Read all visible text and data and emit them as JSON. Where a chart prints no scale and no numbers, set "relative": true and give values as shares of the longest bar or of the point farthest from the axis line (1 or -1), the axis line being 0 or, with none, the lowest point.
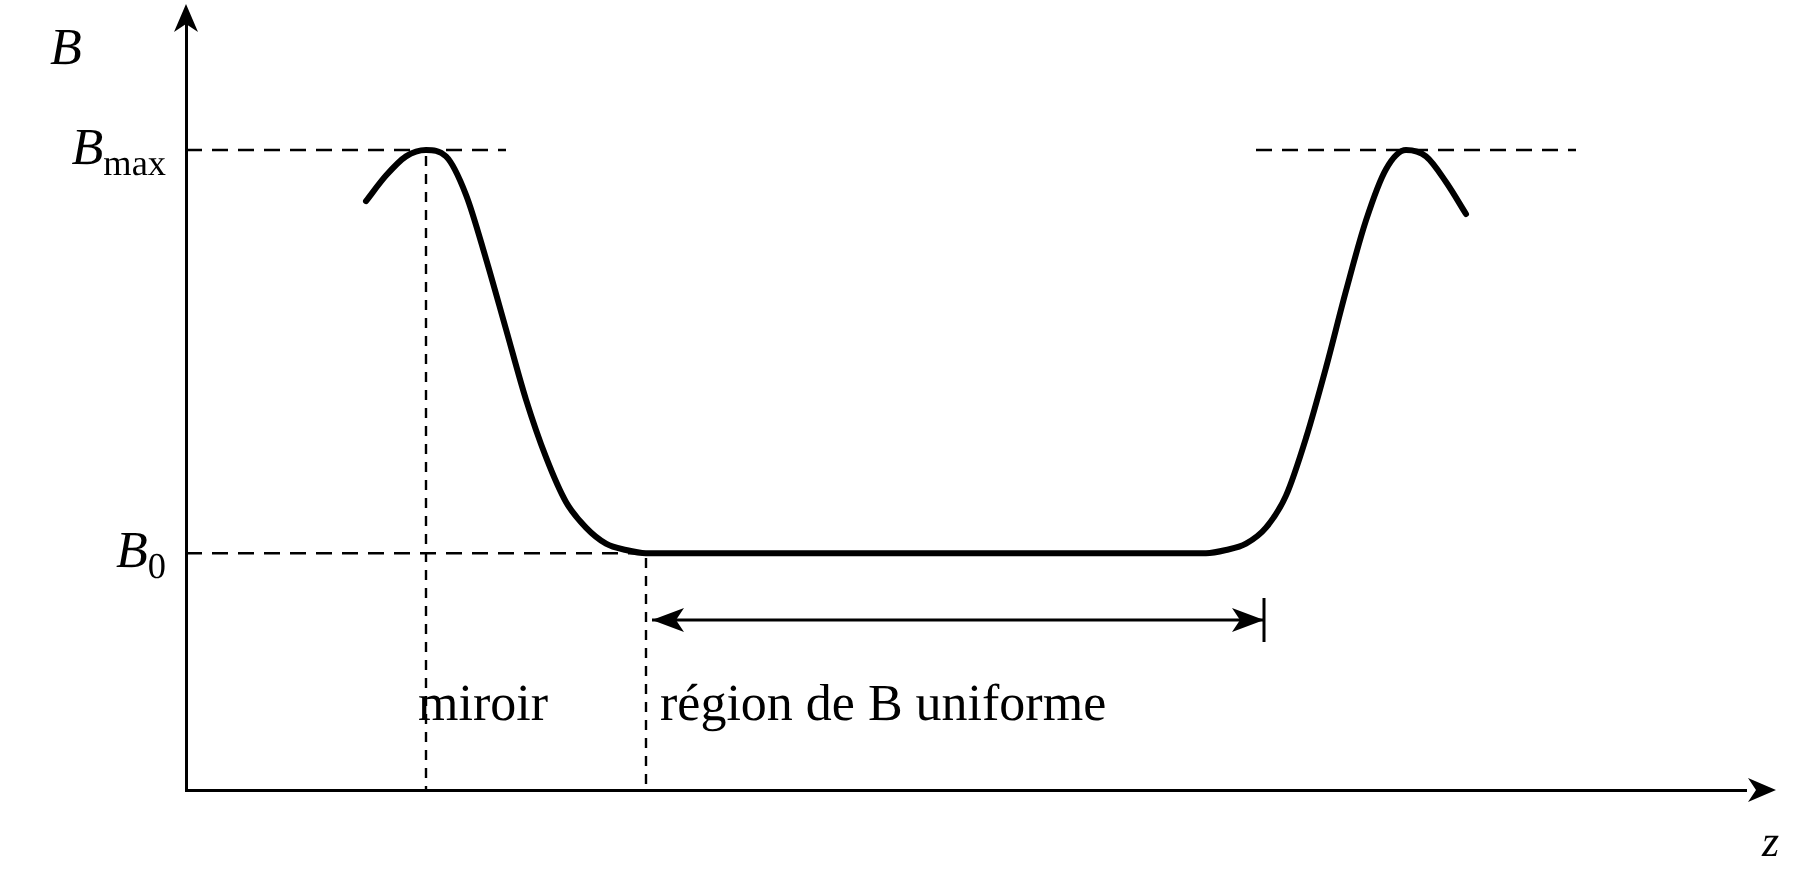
{
  "chart_data": {
    "type": "line",
    "relative": true,
    "xlabel": "z",
    "ylabel": "B",
    "categories": [
      null,
      null,
      null,
      null,
      null,
      null,
      null,
      null,
      null,
      null,
      null,
      null,
      null,
      null,
      null,
      null,
      null,
      null,
      null,
      null,
      null,
      null,
      null,
      null,
      null,
      null,
      null,
      null,
      null,
      null,
      null,
      null,
      null,
      null,
      null,
      null,
      null,
      null,
      null,
      null,
      null,
      null,
      null,
      null,
      null,
      null,
      null,
      null,
      null,
      null,
      null,
      null,
      null,
      null,
      null,
      null,
      null,
      null,
      null,
      null,
      null,
      null,
      null,
      null,
      null,
      null,
      null,
      null,
      null,
      null,
      null,
      null,
      null,
      null,
      null,
      null,
      null,
      null,
      null
    ],
    "series": [
      {
        "color": "#000000",
        "values": [
          null,
          null,
          null,
          null,
          null,
          null,
          null,
          null,
          null,
          0.92,
          0.96,
          0.99,
          1.0,
          0.99,
          0.93,
          0.83,
          0.72,
          0.61,
          0.52,
          0.45,
          0.41,
          0.385,
          0.375,
          0.37,
          0.37,
          0.37,
          0.37,
          0.37,
          0.37,
          0.37,
          0.37,
          0.37,
          0.37,
          0.37,
          0.37,
          0.37,
          0.37,
          0.37,
          0.37,
          0.37,
          0.37,
          0.37,
          0.37,
          0.37,
          0.37,
          0.37,
          0.37,
          0.37,
          0.37,
          0.37,
          0.37,
          0.37,
          0.375,
          0.385,
          0.41,
          0.46,
          0.55,
          0.66,
          0.78,
          0.89,
          0.97,
          1.0,
          0.99,
          0.95,
          0.9,
          null,
          null,
          null,
          null,
          null,
          null,
          null,
          null,
          null,
          null,
          null,
          null,
          null,
          null
        ]
      }
    ],
    "ref_lines": [
      {
        "axis": "y",
        "value": 1.0,
        "label": "B$_{max}$",
        "line_style": "dashed"
      },
      {
        "axis": "y",
        "value": 0.37,
        "label": "B$_{0}$",
        "line_style": "dashed"
      }
    ],
    "annotations": [
      "miroir",
      "région de B uniforme"
    ],
    "grid": false,
    "legend": false,
    "marker": "none",
    "line_style": "solid"
  }
}
